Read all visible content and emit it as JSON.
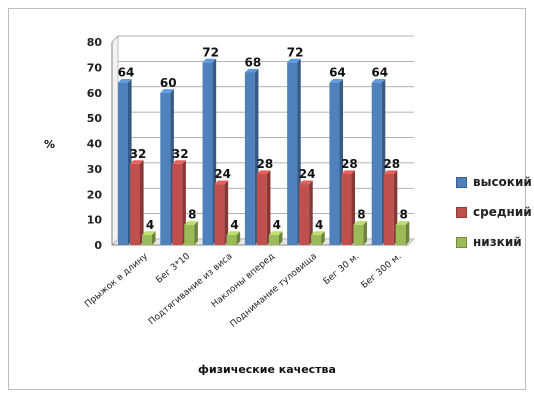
{
  "chart_data": {
    "type": "bar",
    "title": "",
    "xlabel": "физические качества",
    "ylabel": "%",
    "ylim": [
      0,
      80
    ],
    "yticks": [
      0,
      10,
      20,
      30,
      40,
      50,
      60,
      70,
      80
    ],
    "grid": true,
    "legend_position": "right",
    "categories": [
      "Прыжок в длину",
      "Бег 3*10",
      "Подтягивание из виса",
      "Наклоны вперед",
      "Поднимание туловища",
      "Бег 30 м.",
      "Бег 300 м."
    ],
    "series": [
      {
        "name": "высокий",
        "color": "#4F81BD",
        "values": [
          64,
          60,
          72,
          68,
          72,
          64,
          64
        ]
      },
      {
        "name": "средний",
        "color": "#C0504D",
        "values": [
          32,
          32,
          24,
          28,
          24,
          28,
          28
        ]
      },
      {
        "name": "низкий",
        "color": "#9BBB59",
        "values": [
          4,
          8,
          4,
          4,
          4,
          8,
          8
        ]
      }
    ]
  }
}
